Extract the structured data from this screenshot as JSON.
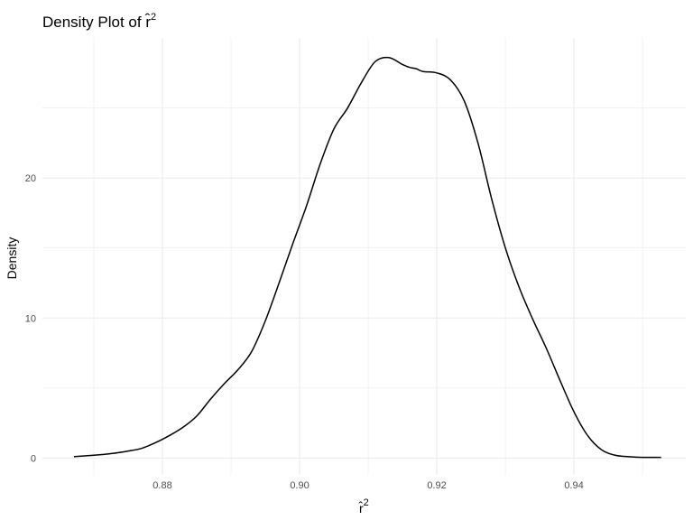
{
  "chart_data": {
    "type": "line",
    "title": "Density Plot of r̂",
    "title_superscript": "2",
    "xlabel": "r̂",
    "xlabel_superscript": "2",
    "ylabel": "Density",
    "xlim": [
      0.8625,
      0.9563
    ],
    "ylim": [
      -1.2,
      30.0
    ],
    "x_ticks": [
      0.88,
      0.9,
      0.92,
      0.94
    ],
    "x_tick_labels": [
      "0.88",
      "0.90",
      "0.92",
      "0.94"
    ],
    "x_minor_ticks": [
      0.87,
      0.89,
      0.91,
      0.93,
      0.95
    ],
    "y_ticks": [
      0,
      10,
      20
    ],
    "y_tick_labels": [
      "0",
      "10",
      "20"
    ],
    "y_minor_ticks": [
      5,
      15,
      25
    ],
    "grid": true,
    "line_color": "#000000",
    "grid_color": "#ebebeb",
    "series": [
      {
        "x": [
          0.8671,
          0.87,
          0.873,
          0.875,
          0.877,
          0.879,
          0.881,
          0.883,
          0.885,
          0.887,
          0.889,
          0.891,
          0.893,
          0.895,
          0.897,
          0.899,
          0.901,
          0.903,
          0.905,
          0.907,
          0.909,
          0.911,
          0.913,
          0.915,
          0.916,
          0.917,
          0.918,
          0.92,
          0.922,
          0.924,
          0.926,
          0.928,
          0.93,
          0.932,
          0.934,
          0.936,
          0.938,
          0.94,
          0.942,
          0.944,
          0.946,
          0.948,
          0.95,
          0.9527
        ],
        "y": [
          0.1,
          0.2,
          0.35,
          0.5,
          0.7,
          1.1,
          1.6,
          2.2,
          3.0,
          4.2,
          5.3,
          6.3,
          7.6,
          9.8,
          12.5,
          15.3,
          18.0,
          21.0,
          23.5,
          25.0,
          26.8,
          28.3,
          28.6,
          28.1,
          27.9,
          27.8,
          27.6,
          27.5,
          27.0,
          25.5,
          22.5,
          18.5,
          15.0,
          12.2,
          9.9,
          7.8,
          5.5,
          3.3,
          1.6,
          0.6,
          0.2,
          0.1,
          0.05,
          0.05
        ]
      }
    ]
  }
}
